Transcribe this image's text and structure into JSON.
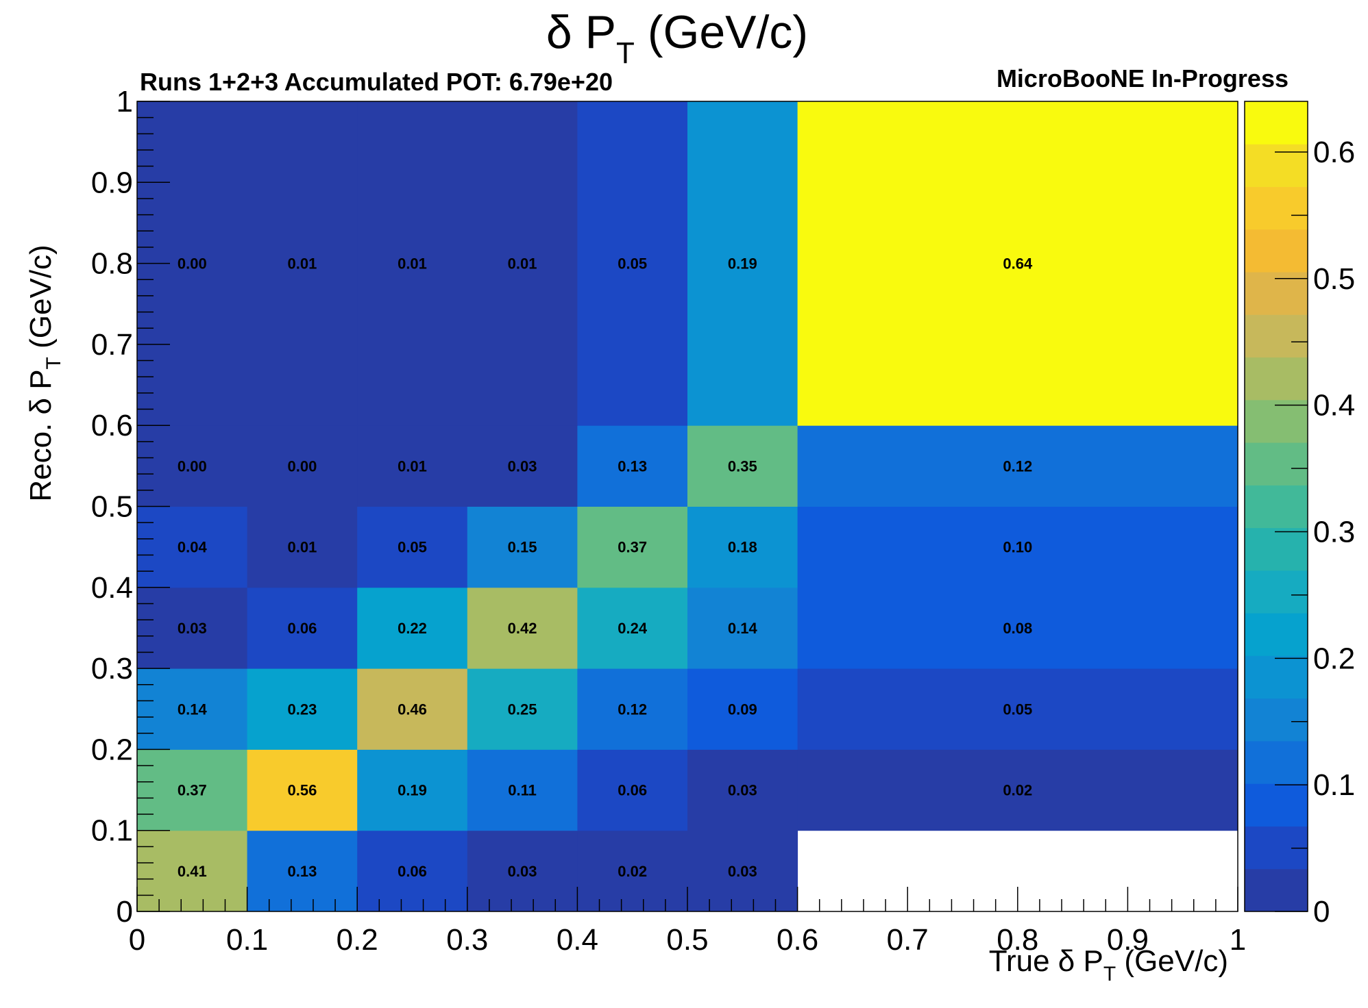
{
  "chart_data": {
    "type": "heatmap",
    "title": "δ P_T (GeV/c)",
    "title_main": "δ P",
    "title_sub": "T",
    "title_unit": " (GeV/c)",
    "subtitle_left": "Runs 1+2+3 Accumulated POT: 6.79e+20",
    "subtitle_right": "MicroBooNE In-Progress",
    "xlabel": "True  δ P_T (GeV/c)",
    "xlabel_main": "True  δ P",
    "xlabel_sub": "T",
    "xlabel_unit": " (GeV/c)",
    "ylabel": "Reco. δ P_T (GeV/c)",
    "ylabel_main": "Reco. δ P",
    "ylabel_sub": "T",
    "ylabel_unit": " (GeV/c)",
    "xlim": [
      0,
      1
    ],
    "ylim": [
      0,
      1
    ],
    "zlim": [
      0,
      0.64
    ],
    "x_ticks": [
      "0",
      "0.1",
      "0.2",
      "0.3",
      "0.4",
      "0.5",
      "0.6",
      "0.7",
      "0.8",
      "0.9",
      "1"
    ],
    "y_ticks": [
      "0",
      "0.1",
      "0.2",
      "0.3",
      "0.4",
      "0.5",
      "0.6",
      "0.7",
      "0.8",
      "0.9",
      "1"
    ],
    "z_ticks": [
      "0",
      "0.1",
      "0.2",
      "0.3",
      "0.4",
      "0.5",
      "0.6"
    ],
    "x_bins": [
      0,
      0.1,
      0.2,
      0.3,
      0.4,
      0.5,
      0.6,
      1.0
    ],
    "y_bins": [
      0,
      0.1,
      0.2,
      0.3,
      0.4,
      0.5,
      0.6,
      1.0
    ],
    "values": [
      [
        0.41,
        0.13,
        0.06,
        0.03,
        0.02,
        0.03,
        null
      ],
      [
        0.37,
        0.56,
        0.19,
        0.11,
        0.06,
        0.03,
        0.02
      ],
      [
        0.14,
        0.23,
        0.46,
        0.25,
        0.12,
        0.09,
        0.05
      ],
      [
        0.03,
        0.06,
        0.22,
        0.42,
        0.24,
        0.14,
        0.08
      ],
      [
        0.04,
        0.01,
        0.05,
        0.15,
        0.37,
        0.18,
        0.1
      ],
      [
        0.0,
        0.0,
        0.01,
        0.03,
        0.13,
        0.35,
        0.12
      ],
      [
        0.0,
        0.01,
        0.01,
        0.01,
        0.05,
        0.19,
        0.64
      ]
    ],
    "value_labels": [
      [
        "0.41",
        "0.13",
        "0.06",
        "0.03",
        "0.02",
        "0.03",
        ""
      ],
      [
        "0.37",
        "0.56",
        "0.19",
        "0.11",
        "0.06",
        "0.03",
        "0.02"
      ],
      [
        "0.14",
        "0.23",
        "0.46",
        "0.25",
        "0.12",
        "0.09",
        "0.05"
      ],
      [
        "0.03",
        "0.06",
        "0.22",
        "0.42",
        "0.24",
        "0.14",
        "0.08"
      ],
      [
        "0.04",
        "0.01",
        "0.05",
        "0.15",
        "0.37",
        "0.18",
        "0.10"
      ],
      [
        "0.00",
        "0.00",
        "0.01",
        "0.03",
        "0.13",
        "0.35",
        "0.12"
      ],
      [
        "0.00",
        "0.01",
        "0.01",
        "0.01",
        "0.05",
        "0.19",
        "0.64"
      ]
    ],
    "palette": [
      "#273da6",
      "#1c48c4",
      "#0f5bdc",
      "#1170d9",
      "#1283d4",
      "#0c93d2",
      "#06a2ce",
      "#16abc1",
      "#26b2ad",
      "#41b999",
      "#62bc85",
      "#85be72",
      "#a8bc64",
      "#c7b85b",
      "#dfb54a",
      "#f4bb33",
      "#f8cb2c",
      "#f4dd25",
      "#f9fa0e"
    ],
    "colorbar": true
  }
}
